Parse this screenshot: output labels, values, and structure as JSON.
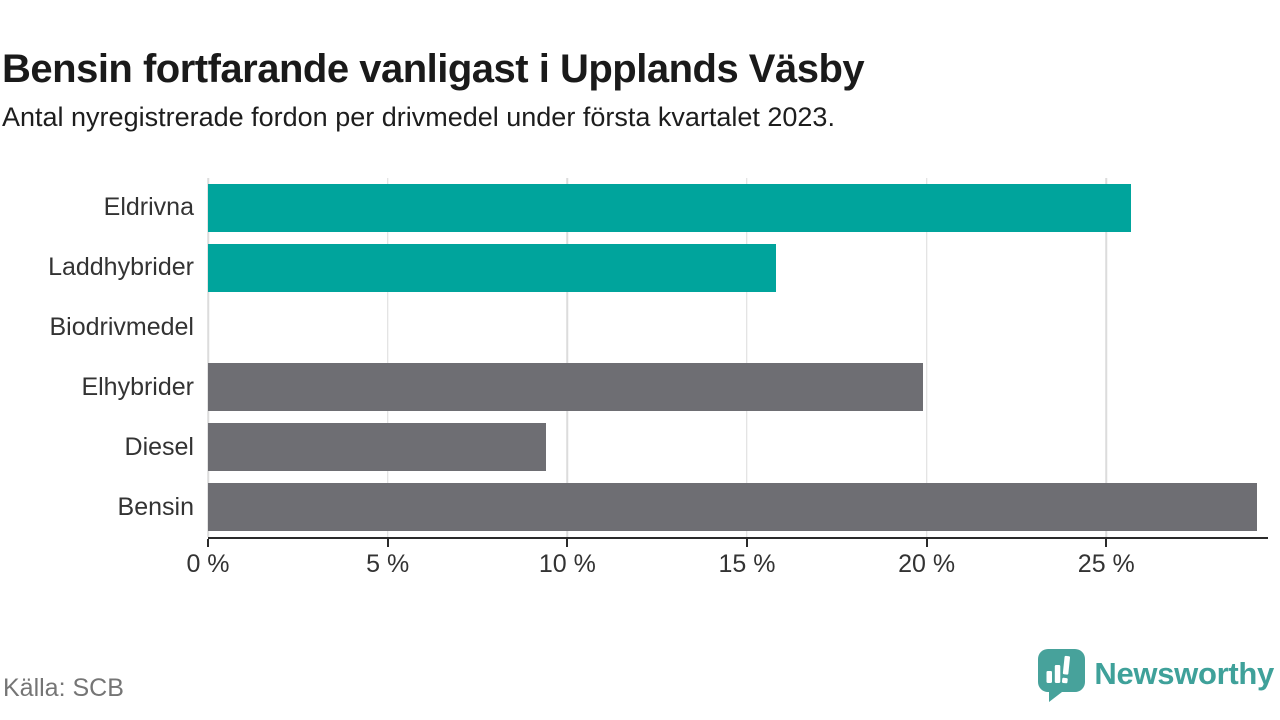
{
  "header": {
    "title": "Bensin fortfarande vanligast i Upplands Väsby",
    "subtitle": "Antal nyregistrerade fordon per drivmedel under första kvartalet 2023."
  },
  "chart_data": {
    "type": "bar",
    "orientation": "horizontal",
    "title": "Bensin fortfarande vanligast i Upplands Väsby",
    "subtitle": "Antal nyregistrerade fordon per drivmedel under första kvartalet 2023.",
    "categories": [
      "Eldrivna",
      "Laddhybrider",
      "Biodrivmedel",
      "Elhybrider",
      "Diesel",
      "Bensin"
    ],
    "values": [
      25.7,
      15.8,
      0,
      19.9,
      9.4,
      29.2
    ],
    "unit": "%",
    "bar_colors": [
      "#00a49c",
      "#00a49c",
      "#00a49c",
      "#6e6e73",
      "#6e6e73",
      "#6e6e73"
    ],
    "xlim": [
      0,
      29.5
    ],
    "x_ticks": [
      0,
      5,
      10,
      15,
      20,
      25
    ],
    "x_tick_labels": [
      "0 %",
      "5 %",
      "10 %",
      "15 %",
      "20 %",
      "25 %"
    ],
    "grid": "vertical-gridlines-behind-bars",
    "legend": "none"
  },
  "footer": {
    "source": "Källa: SCB",
    "brand_name": "Newsworthy"
  },
  "colors": {
    "accent_teal": "#00a49c",
    "bar_gray": "#6e6e73",
    "brand_teal": "#3fa19a",
    "gridline": "#dcdcdc",
    "axis": "#2b2b2b",
    "text_dark": "#1a1a1a",
    "text_label": "#333333",
    "text_muted": "#757575"
  }
}
